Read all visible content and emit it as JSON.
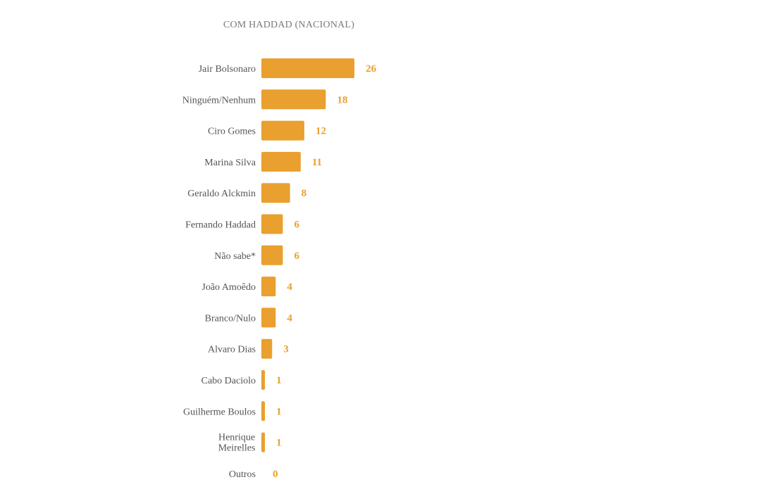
{
  "chart_data": {
    "type": "bar",
    "orientation": "horizontal",
    "title": "COM HADDAD (NACIONAL)",
    "categories": [
      "Jair Bolsonaro",
      "Ninguém/Nenhum",
      "Ciro Gomes",
      "Marina Silva",
      "Geraldo Alckmin",
      "Fernando Haddad",
      "Não sabe*",
      "João Amoêdo",
      "Branco/Nulo",
      "Alvaro Dias",
      "Cabo Daciolo",
      "Guilherme Boulos",
      "Henrique Meirelles",
      "Outros"
    ],
    "values": [
      26,
      18,
      12,
      11,
      8,
      6,
      6,
      4,
      4,
      3,
      1,
      1,
      1,
      0
    ],
    "colors": {
      "bar": "#E9A02F",
      "value_label": "#E9A02F",
      "category_label": "#555555",
      "title": "#7a7a7a"
    },
    "grid": false,
    "legend": "none"
  }
}
